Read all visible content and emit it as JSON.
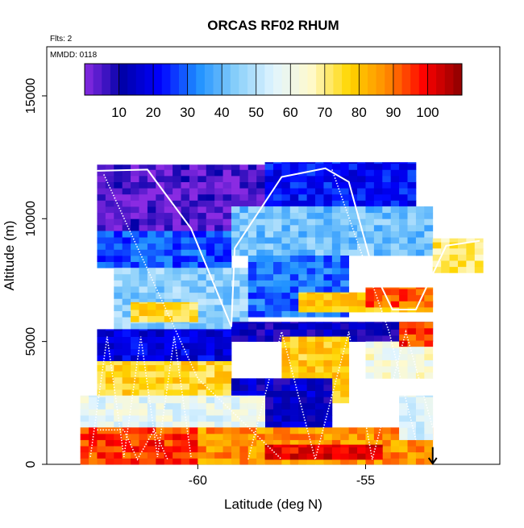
{
  "chart_data": {
    "type": "heatmap",
    "title": "ORCAS RF02 RHUM",
    "xlabel": "Latitude (deg N)",
    "ylabel": "Altitude (m)",
    "flights_note": "Flts: 2",
    "date_note": "MMDD: 0118",
    "xlim": [
      -64.5,
      -51
    ],
    "ylim": [
      0,
      17000
    ],
    "x_ticks": [
      -60,
      -55
    ],
    "x_tick_labels": [
      "-60",
      "-55"
    ],
    "y_ticks": [
      0,
      5000,
      10000,
      15000
    ],
    "y_tick_labels": [
      "0",
      "5000",
      "10000",
      "15000"
    ],
    "colorbar": {
      "min": 0,
      "max": 110,
      "ticks": [
        10,
        20,
        30,
        40,
        50,
        60,
        70,
        80,
        90,
        100
      ],
      "tick_labels": [
        "10",
        "20",
        "30",
        "40",
        "50",
        "60",
        "70",
        "80",
        "90",
        "100"
      ],
      "colors": [
        "#8A2BE2",
        "#0000A8",
        "#0000FF",
        "#1E90FF",
        "#87CEFA",
        "#E0F4FF",
        "#FFFACD",
        "#FFD700",
        "#FF8C00",
        "#FF0000",
        "#8B0000"
      ]
    },
    "cell_width_deg": 0.25,
    "cell_height_m": 250,
    "series": [
      {
        "name": "RHUM",
        "regions": [
          {
            "lat_range": [
              -63.0,
              -58.0
            ],
            "alt_range": [
              9500,
              12200
            ],
            "value": 4
          },
          {
            "lat_range": [
              -58.0,
              -53.5
            ],
            "alt_range": [
              10500,
              12300
            ],
            "value": 22
          },
          {
            "lat_range": [
              -63.0,
              -59.0
            ],
            "alt_range": [
              8000,
              9500
            ],
            "value": 28
          },
          {
            "lat_range": [
              -59.0,
              -53.0
            ],
            "alt_range": [
              8500,
              10500
            ],
            "value": 42
          },
          {
            "lat_range": [
              -62.5,
              -58.5
            ],
            "alt_range": [
              5500,
              8000
            ],
            "value": 45
          },
          {
            "lat_range": [
              -62.0,
              -60.0
            ],
            "alt_range": [
              5800,
              6600
            ],
            "value": 75
          },
          {
            "lat_range": [
              -58.5,
              -55.5
            ],
            "alt_range": [
              6000,
              8500
            ],
            "value": 30
          },
          {
            "lat_range": [
              -57.0,
              -53.0
            ],
            "alt_range": [
              6200,
              7000
            ],
            "value": 78
          },
          {
            "lat_range": [
              -55.0,
              -53.0
            ],
            "alt_range": [
              6400,
              7200
            ],
            "value": 92
          },
          {
            "lat_range": [
              -53.0,
              -51.5
            ],
            "alt_range": [
              7800,
              9200
            ],
            "value": 72
          },
          {
            "lat_range": [
              -63.0,
              -59.0
            ],
            "alt_range": [
              4200,
              5500
            ],
            "value": 18
          },
          {
            "lat_range": [
              -59.0,
              -53.0
            ],
            "alt_range": [
              5000,
              5800
            ],
            "value": 12
          },
          {
            "lat_range": [
              -57.5,
              -55.5
            ],
            "alt_range": [
              2500,
              5200
            ],
            "value": 78
          },
          {
            "lat_range": [
              -55.0,
              -53.0
            ],
            "alt_range": [
              3500,
              5000
            ],
            "value": 62
          },
          {
            "lat_range": [
              -54.0,
              -53.0
            ],
            "alt_range": [
              4800,
              5800
            ],
            "value": 95
          },
          {
            "lat_range": [
              -63.0,
              -59.0
            ],
            "alt_range": [
              2800,
              4200
            ],
            "value": 76
          },
          {
            "lat_range": [
              -59.0,
              -56.0
            ],
            "alt_range": [
              1500,
              3500
            ],
            "value": 14
          },
          {
            "lat_range": [
              -63.5,
              -58.0
            ],
            "alt_range": [
              1500,
              2800
            ],
            "value": 58
          },
          {
            "lat_range": [
              -63.5,
              -60.0
            ],
            "alt_range": [
              0,
              1500
            ],
            "value": 95
          },
          {
            "lat_range": [
              -60.0,
              -53.0
            ],
            "alt_range": [
              0,
              1500
            ],
            "value": 86
          },
          {
            "lat_range": [
              -58.0,
              -54.5
            ],
            "alt_range": [
              200,
              800
            ],
            "value": 101
          },
          {
            "lat_range": [
              -54.0,
              -53.0
            ],
            "alt_range": [
              1000,
              2800
            ],
            "value": 55
          }
        ]
      }
    ],
    "flight_track": [
      [
        -63.0,
        11950
      ],
      [
        -61.5,
        12000
      ],
      [
        -60.2,
        9600
      ],
      [
        -59.0,
        5600
      ],
      [
        -58.9,
        8800
      ],
      [
        -57.5,
        11700
      ],
      [
        -56.2,
        12050
      ],
      [
        -55.5,
        11500
      ],
      [
        -54.8,
        8000
      ],
      [
        -54.2,
        6300
      ],
      [
        -53.5,
        6300
      ],
      [
        -52.6,
        8900
      ],
      [
        -51.6,
        9100
      ]
    ],
    "profile_tracks": [
      [
        [
          -63.2,
          300
        ],
        [
          -62.7,
          5200
        ],
        [
          -62.2,
          300
        ],
        [
          -61.7,
          5200
        ],
        [
          -61.2,
          300
        ],
        [
          -60.7,
          5200
        ],
        [
          -60.2,
          300
        ]
      ],
      [
        [
          -63.0,
          1400
        ],
        [
          -62.2,
          1400
        ],
        [
          -61.8,
          200
        ],
        [
          -61.3,
          1400
        ],
        [
          -60.9,
          200
        ]
      ],
      [
        [
          -58.5,
          200
        ],
        [
          -57.5,
          5400
        ],
        [
          -56.5,
          200
        ],
        [
          -55.5,
          5400
        ],
        [
          -54.8,
          200
        ],
        [
          -53.8,
          5400
        ],
        [
          -53.0,
          1500
        ]
      ],
      [
        [
          -62.8,
          11800
        ],
        [
          -60.0,
          3500
        ],
        [
          -57.5,
          200
        ]
      ],
      [
        [
          -56.0,
          12000
        ],
        [
          -54.3,
          5400
        ],
        [
          -53.5,
          1000
        ]
      ]
    ],
    "marker_arrow": {
      "lat": -53.0,
      "alt_from": 700,
      "alt_to": 0
    }
  }
}
